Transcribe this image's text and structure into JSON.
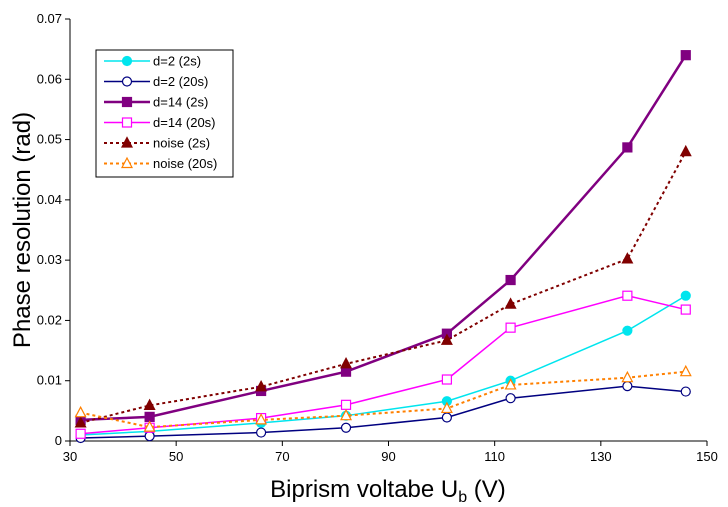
{
  "chart_data": {
    "type": "line",
    "title": "",
    "xlabel": "Biprism voltabe U",
    "xlabel_sub": "b",
    "xlabel_unit": " (V)",
    "ylabel": "Phase resolution (rad)",
    "xlim": [
      30,
      150
    ],
    "ylim": [
      0,
      0.07
    ],
    "xticks": [
      30,
      50,
      70,
      90,
      110,
      130,
      150
    ],
    "xtick_labels": [
      "30",
      "50",
      "70",
      "90",
      "110",
      "130",
      "150"
    ],
    "yticks": [
      0,
      0.01,
      0.02,
      0.03,
      0.04,
      0.05,
      0.06,
      0.07
    ],
    "ytick_labels": [
      "0",
      "0.01",
      "0.02",
      "0.03",
      "0.04",
      "0.05",
      "0.06",
      "0.07"
    ],
    "grid": false,
    "legend_position": "top-left",
    "series": [
      {
        "name": "d=2 (2s)",
        "color": "#00e5ee",
        "line": "solid",
        "marker": "circle-filled",
        "x": [
          32,
          45,
          66,
          82,
          101,
          113,
          135,
          146
        ],
        "y": [
          0.001,
          0.0016,
          0.003,
          0.0042,
          0.0066,
          0.01,
          0.0183,
          0.0241
        ]
      },
      {
        "name": "d=2 (20s)",
        "color": "#000080",
        "line": "solid",
        "marker": "circle-open",
        "x": [
          32,
          45,
          66,
          82,
          101,
          113,
          135,
          146
        ],
        "y": [
          0.0005,
          0.0008,
          0.0014,
          0.0022,
          0.0039,
          0.0071,
          0.0091,
          0.0082
        ]
      },
      {
        "name": "d=14 (2s)",
        "color": "#800080",
        "line": "solid",
        "marker": "square-filled",
        "x": [
          32,
          45,
          66,
          82,
          101,
          113,
          135,
          146
        ],
        "y": [
          0.0035,
          0.004,
          0.0083,
          0.0115,
          0.0178,
          0.0267,
          0.0487,
          0.064
        ]
      },
      {
        "name": "d=14 (20s)",
        "color": "#ff00ff",
        "line": "solid",
        "marker": "square-open",
        "x": [
          32,
          45,
          66,
          82,
          101,
          113,
          135,
          146
        ],
        "y": [
          0.0012,
          0.0022,
          0.0038,
          0.006,
          0.0102,
          0.0188,
          0.0241,
          0.0218
        ]
      },
      {
        "name": "noise (2s)",
        "color": "#800000",
        "line": "dotted",
        "marker": "triangle-filled",
        "x": [
          32,
          45,
          66,
          82,
          101,
          113,
          135,
          146
        ],
        "y": [
          0.003,
          0.0059,
          0.009,
          0.0128,
          0.0167,
          0.0227,
          0.0302,
          0.048
        ]
      },
      {
        "name": "noise (20s)",
        "color": "#ff8000",
        "line": "dotted",
        "marker": "triangle-open",
        "x": [
          32,
          45,
          66,
          82,
          101,
          113,
          135,
          146
        ],
        "y": [
          0.0047,
          0.0023,
          0.0035,
          0.0042,
          0.0054,
          0.0093,
          0.0105,
          0.0115
        ]
      }
    ]
  }
}
